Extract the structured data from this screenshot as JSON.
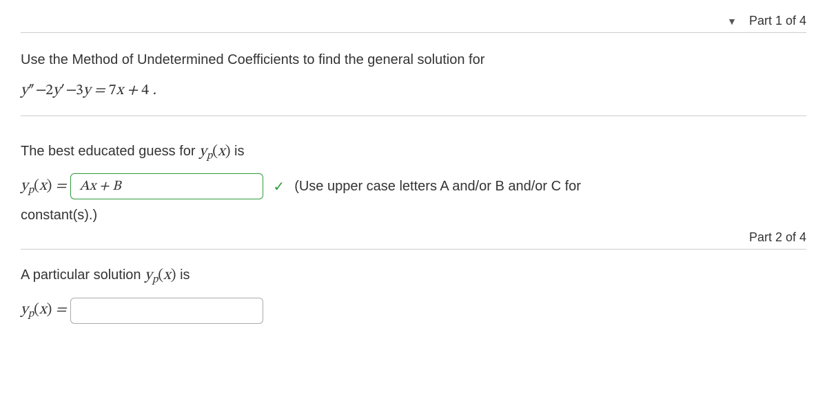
{
  "part1": {
    "header_label": "Part 1 of 4",
    "triangle": "▼",
    "prompt_line1": "Use the Method of Undetermined Coefficients to find the general solution for",
    "equation_text": "y'' − 2y' − 3y = 7x + 4 .",
    "question_prefix": "The best educated guess for ",
    "yp_symbol": "y_p(x)",
    "question_suffix": " is",
    "yp_label": "y_p(x) =",
    "input_value": "Ax + B",
    "check_mark": "✓",
    "hint": "(Use upper case letters A and/or B and/or C for",
    "constant": "constant(s).)"
  },
  "part2": {
    "header_label": "Part 2 of 4",
    "question_prefix": "A particular solution ",
    "yp_symbol": "y_p(x)",
    "question_suffix": " is",
    "yp_label": "y_p(x) =",
    "input_value": ""
  },
  "colors": {
    "border": "#cccccc",
    "text": "#333333",
    "correct_green": "#2e9a3a",
    "input_border": "#aaaaaa"
  }
}
